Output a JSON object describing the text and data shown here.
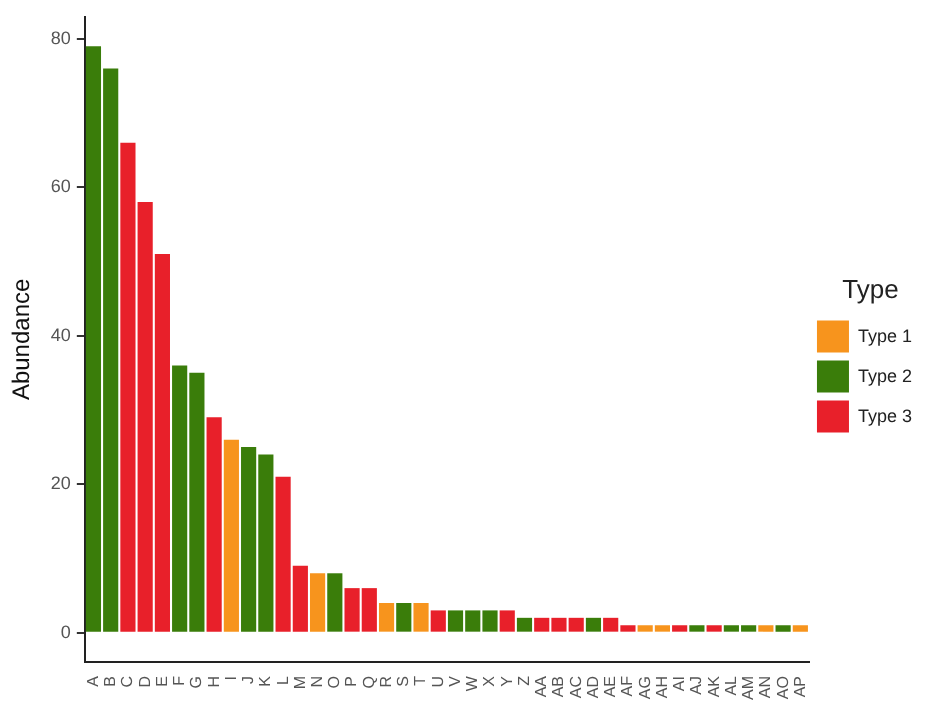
{
  "chart_data": {
    "type": "bar",
    "stacked": true,
    "ylabel": "Abundance",
    "legend_title": "Type",
    "legend": "right",
    "grid": false,
    "categories": [
      "A",
      "B",
      "C",
      "D",
      "E",
      "F",
      "G",
      "H",
      "I",
      "J",
      "K",
      "L",
      "M",
      "N",
      "O",
      "P",
      "Q",
      "R",
      "S",
      "T",
      "U",
      "V",
      "W",
      "X",
      "Y",
      "Z",
      "AA",
      "AB",
      "AC",
      "AD",
      "AE",
      "AF",
      "AG",
      "AH",
      "AI",
      "AJ",
      "AK",
      "AL",
      "AM",
      "AN",
      "AO",
      "AP"
    ],
    "ylim": [
      -3.95,
      82.95
    ],
    "yticks": [
      0,
      20,
      40,
      60,
      80
    ],
    "series": [
      {
        "name": "Type 1",
        "color": "#f7941d",
        "values": [
          null,
          null,
          null,
          null,
          null,
          null,
          null,
          null,
          26,
          null,
          null,
          null,
          null,
          8,
          null,
          null,
          null,
          4,
          null,
          4,
          null,
          null,
          null,
          null,
          null,
          null,
          null,
          null,
          null,
          null,
          null,
          null,
          1,
          1,
          null,
          null,
          null,
          null,
          null,
          1,
          null,
          1
        ]
      },
      {
        "name": "Type 2",
        "color": "#3a7d0a",
        "values": [
          79,
          76,
          null,
          null,
          null,
          36,
          35,
          null,
          null,
          25,
          24,
          null,
          null,
          null,
          8,
          null,
          null,
          null,
          4,
          null,
          null,
          3,
          3,
          3,
          null,
          2,
          null,
          null,
          null,
          2,
          null,
          null,
          null,
          null,
          null,
          1,
          null,
          1,
          1,
          null,
          1,
          null
        ]
      },
      {
        "name": "Type 3",
        "color": "#e8202a",
        "values": [
          null,
          null,
          66,
          58,
          51,
          null,
          null,
          29,
          null,
          null,
          null,
          21,
          9,
          null,
          null,
          6,
          6,
          null,
          null,
          null,
          3,
          null,
          null,
          null,
          3,
          null,
          2,
          2,
          2,
          null,
          2,
          1,
          null,
          null,
          1,
          null,
          1,
          null,
          null,
          null,
          null,
          null
        ]
      }
    ]
  }
}
